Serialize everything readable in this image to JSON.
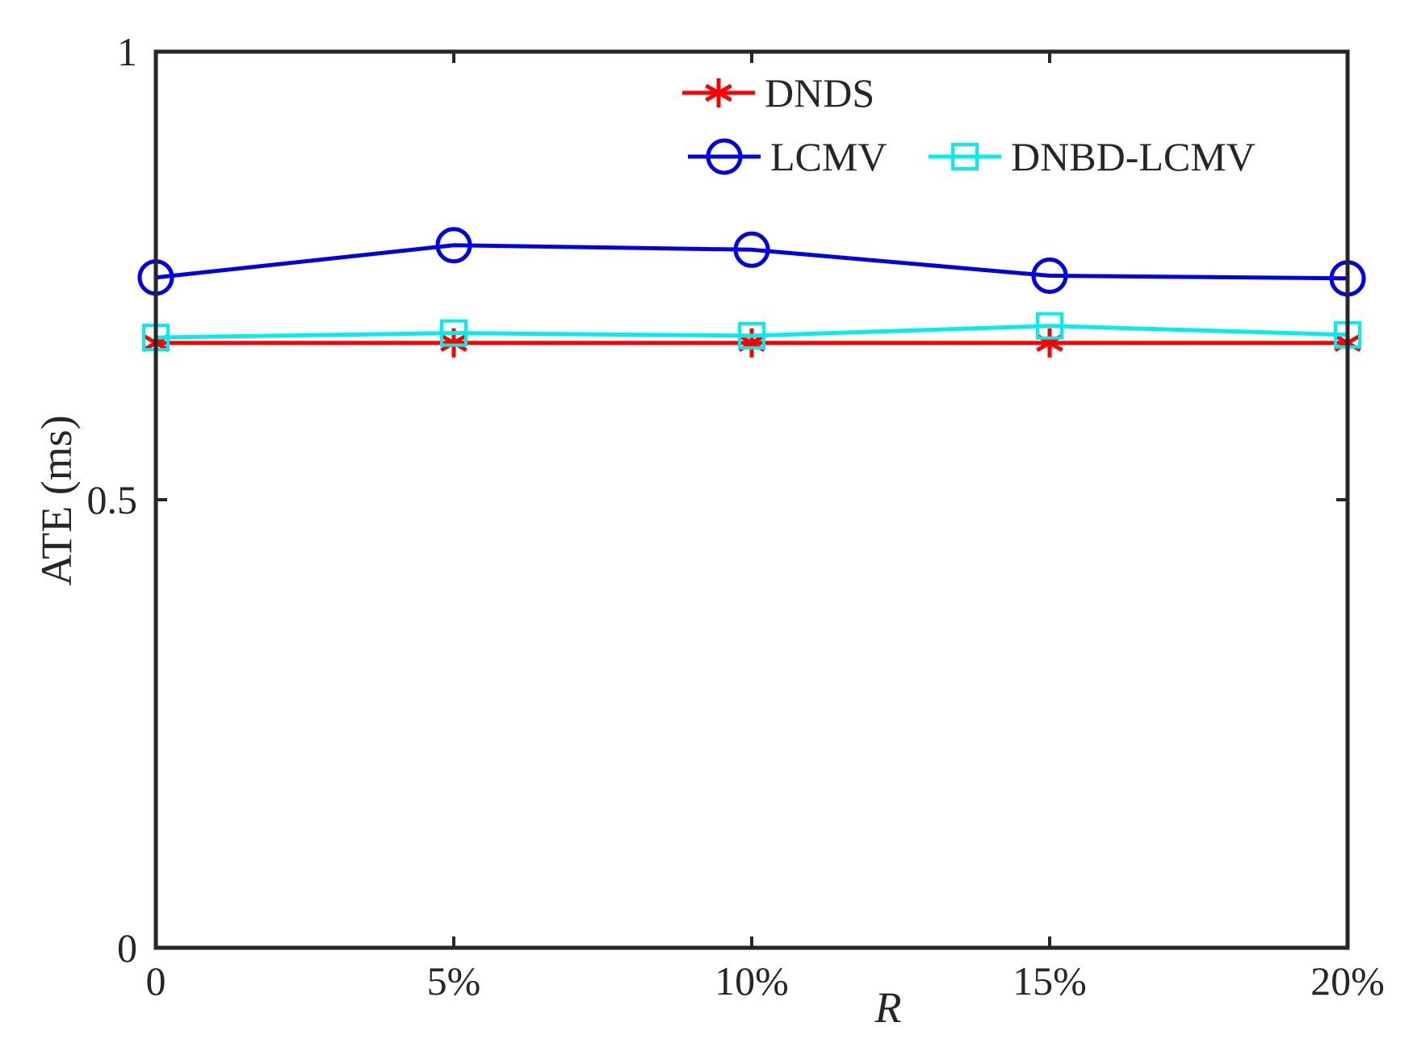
{
  "chart_data": {
    "type": "line",
    "categories": [
      "0",
      "5%",
      "10%",
      "15%",
      "20%"
    ],
    "x": [
      0,
      5,
      10,
      15,
      20
    ],
    "ylabel": "ATE (ms)",
    "xlabel": "R",
    "ylim": [
      0,
      1
    ],
    "xlim": [
      0,
      20
    ],
    "yticks": [
      "0",
      "0.5",
      "1"
    ],
    "grid": false,
    "legend_position": "top-right",
    "series": [
      {
        "name": "DNDS",
        "color": "#ff0000",
        "marker": "asterisk",
        "values": [
          0.675,
          0.675,
          0.675,
          0.675,
          0.675
        ]
      },
      {
        "name": "LCMV",
        "color": "#0000ee",
        "marker": "circle",
        "values": [
          0.748,
          0.784,
          0.779,
          0.75,
          0.747
        ]
      },
      {
        "name": "DNBD-LCMV",
        "color": "#00eeee",
        "marker": "square",
        "values": [
          0.681,
          0.686,
          0.683,
          0.694,
          0.684
        ]
      }
    ]
  }
}
